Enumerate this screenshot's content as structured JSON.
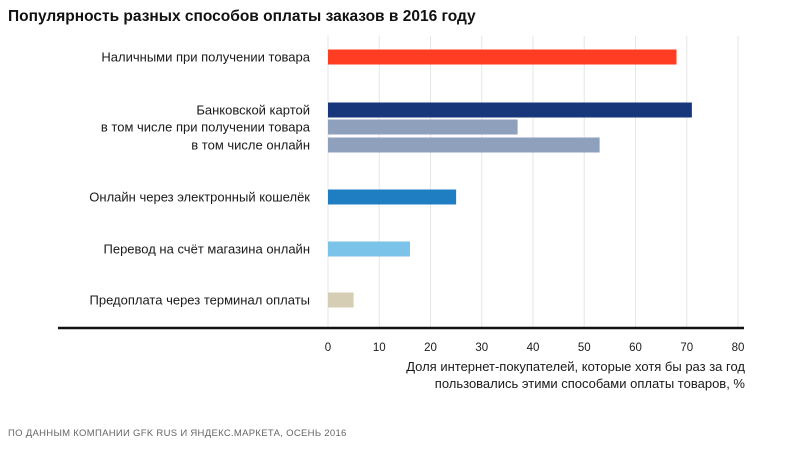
{
  "title": "Популярность разных способов оплаты заказов в 2016 году",
  "xlabel_lines": [
    "Доля интернет-покупателей, которые хотя бы раз за год",
    "пользовались этими способами оплаты товаров, %"
  ],
  "source": "ПО ДАННЫМ КОМПАНИИ GFK RUS И ЯНДЕКС.МАРКЕТА, ОСЕНЬ 2016",
  "colors": {
    "cash": "#ff3d22",
    "card": "#17377a",
    "card_sub": "#8fa0bd",
    "ewallet": "#1f7ec1",
    "transfer": "#7cc3ea",
    "terminal": "#d5ceb5",
    "axis": "#111111"
  },
  "chart_data": {
    "type": "bar",
    "orientation": "horizontal",
    "title": "Популярность разных способов оплаты заказов в 2016 году",
    "xlabel": "Доля интернет-покупателей, которые хотя бы раз за год пользовались этими способами оплаты товаров, %",
    "ylabel": "",
    "xlim": [
      0,
      80
    ],
    "xticks": [
      0,
      10,
      20,
      30,
      40,
      50,
      60,
      70,
      80
    ],
    "grid": true,
    "categories": [
      "Наличными при получении товара",
      "Банковской картой",
      "в том числе при получении товара",
      "в том числе онлайн",
      "Онлайн через электронный кошелёк",
      "Перевод на счёт магазина онлайн",
      "Предоплата через терминал оплаты"
    ],
    "values": [
      68,
      71,
      37,
      53,
      25,
      16,
      5
    ],
    "bar_colors": [
      "cash",
      "card",
      "card_sub",
      "card_sub",
      "ewallet",
      "transfer",
      "terminal"
    ]
  }
}
